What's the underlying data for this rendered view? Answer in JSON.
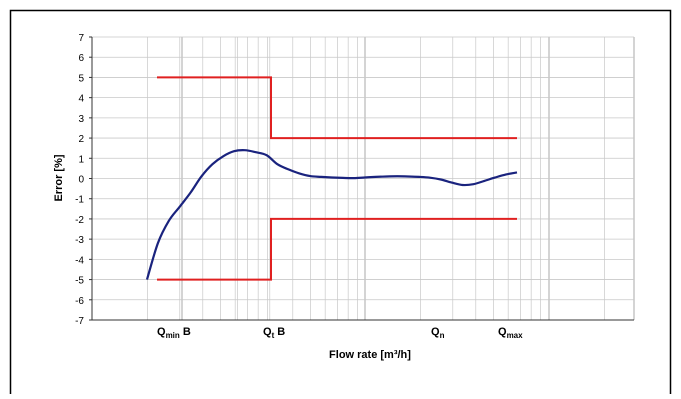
{
  "chart_data": {
    "type": "line",
    "xlabel": "Flow rate [m³/h]",
    "ylabel": "Error [%]",
    "ylim": [
      -7,
      7
    ],
    "yticks": [
      7,
      6,
      5,
      4,
      3,
      2,
      1,
      0,
      -1,
      -2,
      -3,
      -4,
      -5,
      -6,
      -7
    ],
    "x_scale": "log",
    "grid": true,
    "legend": "none",
    "x_markers": [
      {
        "label": "Q",
        "sub": "min",
        "suffix": " B"
      },
      {
        "label": "Q",
        "sub": "t",
        "suffix": " B"
      },
      {
        "label": "Q",
        "sub": "n",
        "suffix": ""
      },
      {
        "label": "Q",
        "sub": "max",
        "suffix": ""
      }
    ],
    "mpe_upper": [
      {
        "at": "Qmin",
        "y": 5
      },
      {
        "at": "Qt",
        "y": 5
      },
      {
        "at": "Qt",
        "y": 2
      },
      {
        "at": "Qmax",
        "y": 2
      }
    ],
    "mpe_lower": [
      {
        "at": "Qmin",
        "y": -5
      },
      {
        "at": "Qt",
        "y": -5
      },
      {
        "at": "Qt",
        "y": -2
      },
      {
        "at": "Qmax",
        "y": -2
      }
    ],
    "error_curve": [
      -5.0,
      -3.2,
      -2.1,
      -1.4,
      -0.7,
      0.1,
      0.7,
      1.1,
      1.35,
      1.4,
      1.3,
      1.15,
      0.7,
      0.45,
      0.25,
      0.12,
      0.08,
      0.05,
      0.03,
      0.02,
      0.05,
      0.08,
      0.1,
      0.11,
      0.1,
      0.08,
      0.04,
      -0.05,
      -0.2,
      -0.32,
      -0.28,
      -0.12,
      0.05,
      0.2,
      0.3
    ],
    "colors": {
      "mpe": "#e02020",
      "curve": "#1a237e",
      "grid": "#c8c8c8",
      "axis": "#333333"
    }
  }
}
